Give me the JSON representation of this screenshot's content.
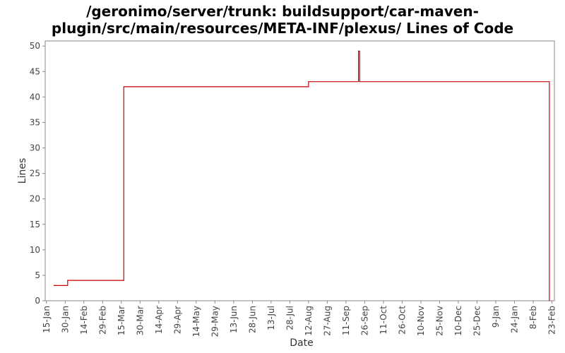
{
  "chart_data": {
    "type": "line",
    "title_lines": [
      "/geronimo/server/trunk: buildsupport/car-maven-",
      "plugin/src/main/resources/META-INF/plexus/ Lines of Code"
    ],
    "xlabel": "Date",
    "ylabel": "Lines",
    "ylim": [
      0,
      51
    ],
    "yticks": [
      0,
      5,
      10,
      15,
      20,
      25,
      30,
      35,
      40,
      45,
      50
    ],
    "x_tick_labels": [
      "15-Jan",
      "30-Jan",
      "14-Feb",
      "29-Feb",
      "15-Mar",
      "30-Mar",
      "14-Apr",
      "29-Apr",
      "14-May",
      "29-May",
      "13-Jun",
      "28-Jun",
      "13-Jul",
      "28-Jul",
      "12-Aug",
      "27-Aug",
      "11-Sep",
      "26-Sep",
      "11-Oct",
      "26-Oct",
      "10-Nov",
      "25-Nov",
      "10-Dec",
      "25-Dec",
      "9-Jan",
      "24-Jan",
      "8-Feb",
      "23-Feb"
    ],
    "x_tick_dates": [
      "2008-01-15",
      "2008-01-30",
      "2008-02-14",
      "2008-02-29",
      "2008-03-15",
      "2008-03-30",
      "2008-04-14",
      "2008-04-29",
      "2008-05-14",
      "2008-05-29",
      "2008-06-13",
      "2008-06-28",
      "2008-07-13",
      "2008-07-28",
      "2008-08-12",
      "2008-08-27",
      "2008-09-11",
      "2008-09-26",
      "2008-10-11",
      "2008-10-26",
      "2008-11-10",
      "2008-11-25",
      "2008-12-10",
      "2008-12-25",
      "2009-01-09",
      "2009-01-24",
      "2009-02-08",
      "2009-02-23"
    ],
    "xlim": [
      "2008-01-14",
      "2009-02-25"
    ],
    "grid": false,
    "series": [
      {
        "color": "#cc0000",
        "step": true,
        "points": [
          {
            "x": "2008-01-21",
            "y": 3
          },
          {
            "x": "2008-02-01",
            "y": 4
          },
          {
            "x": "2008-03-17",
            "y": 42
          },
          {
            "x": "2008-08-12",
            "y": 43
          },
          {
            "x": "2008-09-21",
            "y": 49
          },
          {
            "x": "2008-09-22",
            "y": 43
          },
          {
            "x": "2009-02-21",
            "y": 0
          }
        ]
      }
    ]
  }
}
